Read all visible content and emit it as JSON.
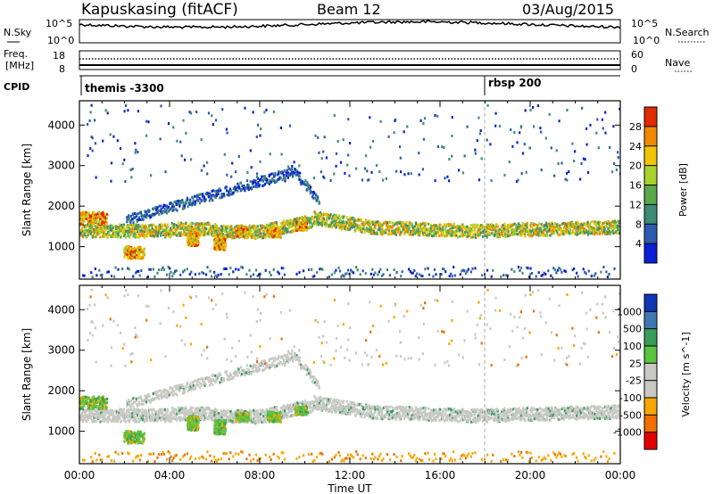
{
  "header": {
    "station": "Kapuskasing (fitACF)",
    "beam": "Beam 12",
    "date": "03/Aug/2015"
  },
  "status_panels": {
    "nsky_label": "N.Sky",
    "nsearch_label": "N.Search",
    "nsky_ticks": [
      "10^5",
      "10^0"
    ],
    "nsearch_ticks": [
      "10^5",
      "10^0"
    ],
    "freq_label_line1": "Freq.",
    "freq_label_line2": "[MHz]",
    "freq_ticks": [
      "18",
      "8"
    ],
    "nave_label": "Nave",
    "nave_ticks": [
      "60",
      "0"
    ],
    "cpid_label": "CPID",
    "cpid_events": [
      {
        "label": "themis -3300",
        "hour": 0.0
      },
      {
        "label": "rbsp 200",
        "hour": 18.05
      }
    ]
  },
  "chart_data": [
    {
      "type": "heatmap",
      "name": "power",
      "ylabel": "Slant Range [km]",
      "xlabel": "",
      "xlim": [
        0,
        24
      ],
      "ylim": [
        200,
        4600
      ],
      "yticks": [
        1000,
        2000,
        3000,
        4000
      ],
      "colorbar": {
        "label": "Power [dB]",
        "tick_labels": [
          "4",
          "8",
          "12",
          "16",
          "20",
          "24",
          "28"
        ],
        "colors": [
          "#0a1fd6",
          "#2a5bb0",
          "#3e8a74",
          "#59a84a",
          "#a8d12c",
          "#f0c400",
          "#f08a00",
          "#e02a00"
        ]
      },
      "features": [
        {
          "desc": "main scatter band",
          "x": [
            0.0,
            6.0,
            8.0,
            10.2,
            12.0,
            16.0,
            18.0,
            24.0
          ],
          "y": [
            1400,
            1450,
            1350,
            1600,
            1500,
            1300,
            1380,
            1450
          ]
        },
        {
          "desc": "upper arc",
          "x": [
            2.0,
            4.0,
            6.0,
            8.0,
            9.5,
            10.5,
            12.0
          ],
          "y": [
            1700,
            1950,
            2300,
            2650,
            2800,
            2200,
            1800
          ]
        }
      ]
    },
    {
      "type": "heatmap",
      "name": "velocity",
      "ylabel": "Slant Range [km]",
      "xlabel": "Time UT",
      "xlim": [
        0,
        24
      ],
      "ylim": [
        200,
        4600
      ],
      "yticks": [
        1000,
        2000,
        3000,
        4000
      ],
      "xticks": [
        "00:00",
        "04:00",
        "08:00",
        "12:00",
        "16:00",
        "20:00",
        "00:00"
      ],
      "colorbar": {
        "label": "Velocity [m s^-1]",
        "tick_labels": [
          "1000",
          "500",
          "100",
          "25",
          "-25",
          "-100",
          "-500",
          "-1000"
        ],
        "colors": [
          "#1035b5",
          "#3f78b0",
          "#3a9c5a",
          "#5ac441",
          "#c8c8c4",
          "#c8c8c4",
          "#f5a800",
          "#ef6f00",
          "#e00000"
        ]
      }
    }
  ]
}
